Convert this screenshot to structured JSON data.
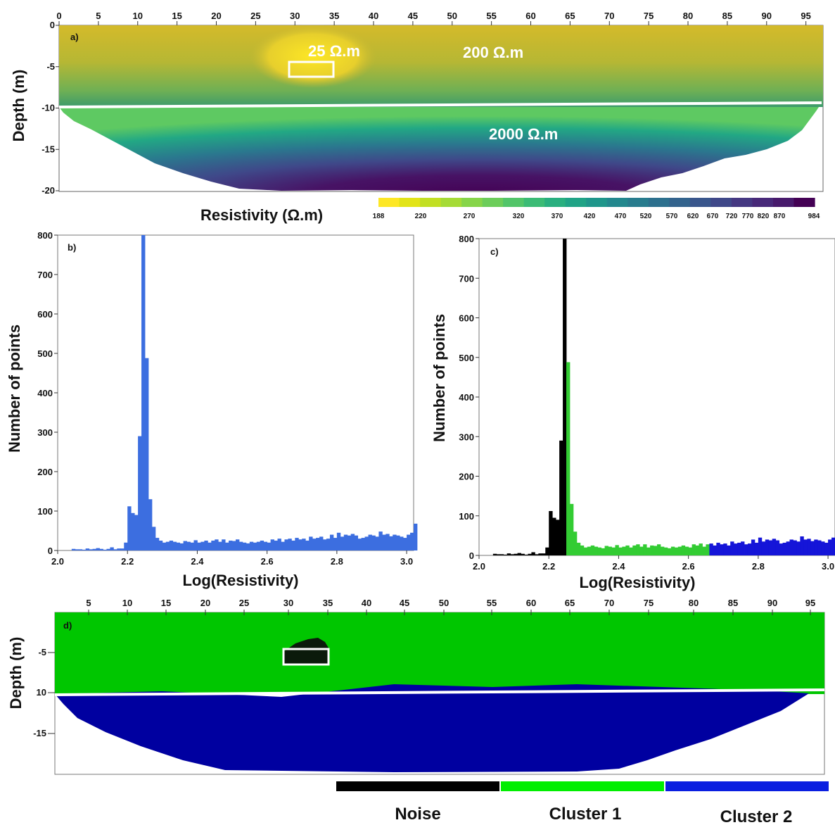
{
  "chart_data": [
    {
      "id": "a",
      "type": "heatmap",
      "panel_label": "a)",
      "ylabel": "Depth (m)",
      "x_ticks": [
        0,
        5,
        10,
        15,
        20,
        25,
        30,
        35,
        40,
        45,
        50,
        55,
        60,
        65,
        70,
        75,
        80,
        85,
        90,
        95
      ],
      "x_tick_labels": [
        "0",
        "5",
        "10",
        "15",
        "20",
        "25",
        "30",
        "35",
        "40",
        "45",
        "50",
        "55",
        "60",
        "65",
        "70",
        "75",
        "80",
        "85",
        "90",
        "95"
      ],
      "xlim": [
        0,
        97
      ],
      "y_ticks": [
        0,
        -5,
        -10,
        -15,
        -20
      ],
      "y_tick_labels": [
        "0",
        "-5",
        "-10",
        "-15",
        "-20"
      ],
      "ylim": [
        -20,
        0
      ],
      "annotations": [
        "25 Ω.m",
        "200 Ω.m",
        "2000 Ω.m"
      ],
      "interface_depth": [
        -10,
        -9.5
      ],
      "colorbar": {
        "title": "Resistivity (Ω.m)",
        "tick_labels": [
          "188",
          "220",
          "270",
          "320",
          "370",
          "420",
          "470",
          "520",
          "570",
          "620",
          "670",
          "720",
          "770",
          "820",
          "870",
          "984"
        ],
        "colors": [
          "#fde725",
          "#e2e418",
          "#c2df23",
          "#a5db36",
          "#86d549",
          "#6ccd5a",
          "#52c569",
          "#3bbb75",
          "#29af7f",
          "#20a386",
          "#1f968b",
          "#23888e",
          "#287c8e",
          "#2d708e",
          "#33638d",
          "#39568c",
          "#3f4889",
          "#453882",
          "#482979",
          "#481a6c",
          "#440154"
        ]
      }
    },
    {
      "id": "b",
      "type": "bar",
      "panel_label": "b)",
      "xlabel": "Log(Resistivity)",
      "ylabel": "Number of points",
      "xlim": [
        2.0,
        3.02
      ],
      "ylim": [
        0,
        800
      ],
      "x_tick_labels": [
        "2.0",
        "2.2",
        "2.4",
        "2.6",
        "2.8",
        "3.0"
      ],
      "y_tick_labels": [
        "0",
        "100",
        "200",
        "300",
        "400",
        "500",
        "600",
        "700",
        "800"
      ],
      "bin_width": 0.01,
      "bin_start": 2.01,
      "counts": [
        0,
        0,
        0,
        4,
        3,
        3,
        2,
        5,
        3,
        4,
        6,
        4,
        2,
        4,
        8,
        3,
        5,
        5,
        20,
        112,
        95,
        90,
        290,
        800,
        488,
        130,
        60,
        32,
        25,
        20,
        22,
        25,
        22,
        20,
        18,
        24,
        22,
        20,
        26,
        20,
        22,
        25,
        20,
        25,
        28,
        22,
        28,
        20,
        25,
        24,
        28,
        22,
        20,
        18,
        22,
        20,
        22,
        25,
        22,
        20,
        28,
        25,
        30,
        22,
        28,
        30,
        25,
        32,
        28,
        30,
        25,
        35,
        30,
        32,
        35,
        28,
        30,
        40,
        32,
        45,
        35,
        40,
        38,
        42,
        38,
        30,
        32,
        35,
        40,
        38,
        35,
        48,
        40,
        42,
        36,
        40,
        38,
        35,
        32,
        40,
        45,
        68
      ],
      "color": "#3c6ee0"
    },
    {
      "id": "c",
      "type": "bar",
      "panel_label": "c)",
      "xlabel": "Log(Resistivity)",
      "ylabel": "Number of points",
      "xlim": [
        2.0,
        3.02
      ],
      "ylim": [
        0,
        800
      ],
      "x_tick_labels": [
        "2.0",
        "2.2",
        "2.4",
        "2.6",
        "2.8",
        "3.0"
      ],
      "y_tick_labels": [
        "0",
        "100",
        "200",
        "300",
        "400",
        "500",
        "600",
        "700",
        "800"
      ],
      "bin_width": 0.01,
      "bin_start": 2.01,
      "counts": [
        0,
        0,
        0,
        4,
        3,
        3,
        2,
        5,
        3,
        4,
        6,
        4,
        2,
        4,
        8,
        3,
        5,
        5,
        20,
        112,
        95,
        90,
        290,
        800,
        488,
        130,
        60,
        32,
        25,
        20,
        22,
        25,
        22,
        20,
        18,
        24,
        22,
        20,
        26,
        20,
        22,
        25,
        20,
        25,
        28,
        22,
        28,
        20,
        25,
        24,
        28,
        22,
        20,
        18,
        22,
        20,
        22,
        25,
        22,
        20,
        28,
        25,
        30,
        22,
        28,
        30,
        25,
        32,
        28,
        30,
        25,
        35,
        30,
        32,
        35,
        28,
        30,
        40,
        32,
        45,
        35,
        40,
        38,
        42,
        38,
        30,
        32,
        35,
        40,
        38,
        35,
        48,
        40,
        42,
        36,
        40,
        38,
        35,
        32,
        40,
        45,
        68
      ],
      "segments": [
        {
          "name": "Noise",
          "from": 2.0,
          "to": 2.25,
          "color": "#000000"
        },
        {
          "name": "Cluster 1",
          "from": 2.25,
          "to": 2.66,
          "color": "#33cc33"
        },
        {
          "name": "Cluster 2",
          "from": 2.66,
          "to": 3.02,
          "color": "#1515d8"
        }
      ]
    },
    {
      "id": "d",
      "type": "heatmap",
      "panel_label": "d)",
      "ylabel": "Depth (m)",
      "x_tick_labels": [
        "5",
        "10",
        "15",
        "20",
        "25",
        "30",
        "35",
        "40",
        "45",
        "50",
        "55",
        "60",
        "65",
        "70",
        "75",
        "80",
        "85",
        "90",
        "95"
      ],
      "y_tick_labels": [
        "-5",
        "10",
        "-15"
      ],
      "classes": [
        "Noise",
        "Cluster 1",
        "Cluster 2"
      ]
    }
  ],
  "legend": {
    "items": [
      {
        "label": "Noise",
        "color": "#000000"
      },
      {
        "label": "Cluster 1",
        "color": "#00ee00"
      },
      {
        "label": "Cluster 2",
        "color": "#0a1ee0"
      }
    ]
  }
}
